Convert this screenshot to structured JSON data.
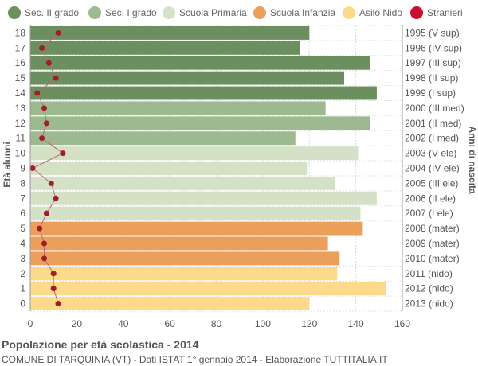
{
  "legend": [
    {
      "label": "Sec. II grado",
      "color": "#6b8f5e"
    },
    {
      "label": "Sec. I grado",
      "color": "#9cb98f"
    },
    {
      "label": "Scuola Primaria",
      "color": "#d4e1c6"
    },
    {
      "label": "Scuola Infanzia",
      "color": "#ec9f5b"
    },
    {
      "label": "Asilo Nido",
      "color": "#fdd98c"
    },
    {
      "label": "Stranieri",
      "color": "#c8102e"
    }
  ],
  "footer": {
    "title": "Popolazione per età scolastica - 2014",
    "subtitle": "COMUNE DI TARQUINIA (VT) - Dati ISTAT 1° gennaio 2014 - Elaborazione TUTTITALIA.IT"
  },
  "chart_data": {
    "type": "bar",
    "orientation": "horizontal",
    "ylabel": "Età alunni",
    "ylabel_right": "Anni di nascita",
    "xlim": [
      0,
      160
    ],
    "xticks": [
      0,
      20,
      40,
      60,
      80,
      100,
      120,
      140,
      160
    ],
    "grid": true,
    "legend_position": "top",
    "categories": [
      "18",
      "17",
      "16",
      "15",
      "14",
      "13",
      "12",
      "11",
      "10",
      "9",
      "8",
      "7",
      "6",
      "5",
      "4",
      "3",
      "2",
      "1",
      "0"
    ],
    "birth_years": [
      "1995 (V sup)",
      "1996 (IV sup)",
      "1997 (III sup)",
      "1998 (II sup)",
      "1999 (I sup)",
      "2000 (III med)",
      "2001 (II med)",
      "2002 (I med)",
      "2003 (V ele)",
      "2004 (IV ele)",
      "2005 (III ele)",
      "2006 (II ele)",
      "2007 (I ele)",
      "2008 (mater)",
      "2009 (mater)",
      "2010 (mater)",
      "2011 (nido)",
      "2012 (nido)",
      "2013 (nido)"
    ],
    "groups": [
      0,
      0,
      0,
      0,
      0,
      1,
      1,
      1,
      2,
      2,
      2,
      2,
      2,
      3,
      3,
      3,
      4,
      4,
      4
    ],
    "values": [
      120,
      116,
      146,
      135,
      149,
      127,
      146,
      114,
      141,
      119,
      131,
      149,
      142,
      143,
      128,
      133,
      132,
      153,
      120
    ],
    "stranieri": [
      12,
      5,
      8,
      11,
      3,
      6,
      7,
      5,
      14,
      1,
      9,
      11,
      7,
      4,
      6,
      6,
      10,
      10,
      12
    ],
    "stranieri_color": "#a01f24"
  }
}
